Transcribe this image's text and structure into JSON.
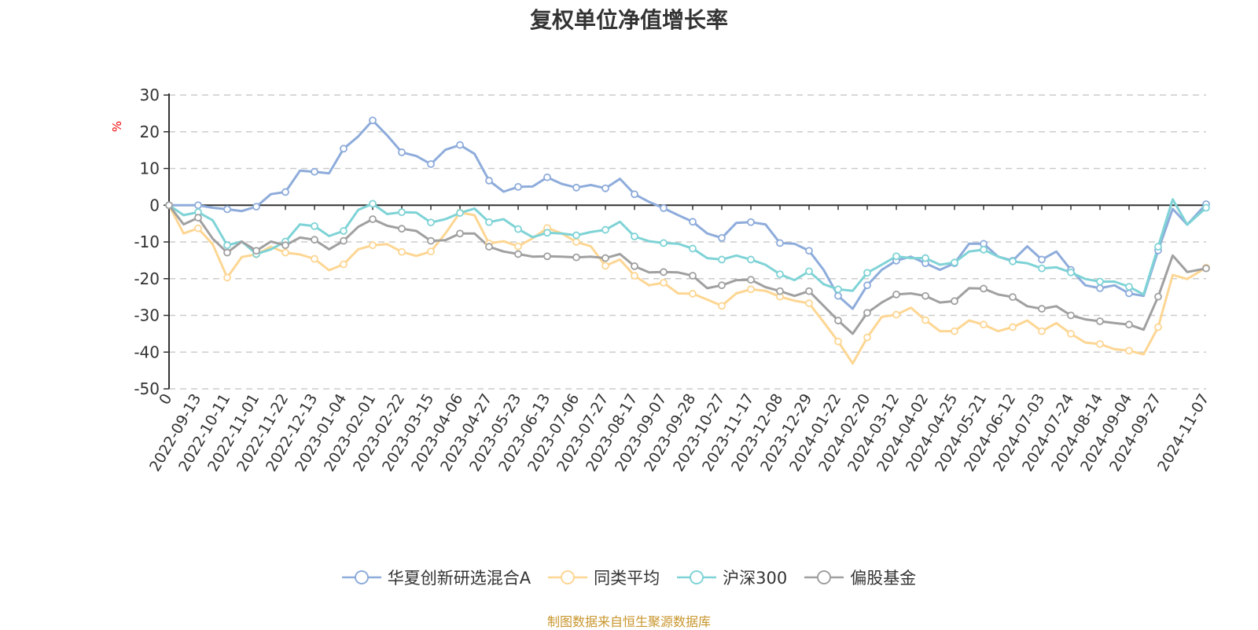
{
  "chart_data": {
    "type": "line",
    "title": "复权单位净值增长率",
    "ylabel": "%",
    "ylim": [
      -50,
      30
    ],
    "yticks": [
      30,
      20,
      10,
      0,
      -10,
      -20,
      -30,
      -40,
      -50
    ],
    "grid": true,
    "legend_position": "bottom",
    "x_labels": [
      "0",
      "2022-09-13",
      "2022-10-11",
      "2022-11-01",
      "2022-11-22",
      "2022-12-13",
      "2023-01-04",
      "2023-02-01",
      "2023-02-22",
      "2023-03-15",
      "2023-04-06",
      "2023-04-27",
      "2023-05-23",
      "2023-06-13",
      "2023-07-06",
      "2023-07-27",
      "2023-08-17",
      "2023-09-07",
      "2023-09-28",
      "2023-10-27",
      "2023-11-17",
      "2023-12-08",
      "2023-12-29",
      "2024-01-22",
      "2024-02-20",
      "2024-03-12",
      "2024-04-02",
      "2024-04-25",
      "2024-05-21",
      "2024-06-12",
      "2024-07-03",
      "2024-07-24",
      "2024-08-14",
      "2024-09-04",
      "2024-09-27",
      "2024-11-07"
    ],
    "series": [
      {
        "name": "华夏创新研选混合A",
        "color": "#8eacdb",
        "values": [
          0,
          0,
          0,
          -0.7,
          -1.1,
          -1.6,
          -0.4,
          3,
          3.6,
          9.4,
          9.1,
          8.7,
          15.4,
          18.7,
          23.1,
          19,
          14.4,
          13.4,
          11.2,
          15.1,
          16.4,
          14,
          6.7,
          3.7,
          5,
          5.1,
          7.6,
          5.8,
          4.8,
          5.5,
          4.6,
          7.2,
          3,
          0.9,
          -0.8,
          -2.7,
          -4.5,
          -7.7,
          -8.9,
          -4.8,
          -4.6,
          -5.2,
          -10.3,
          -10.5,
          -12.4,
          -17.6,
          -24.7,
          -28.2,
          -21.8,
          -17.6,
          -15.1,
          -14,
          -15.8,
          -17.6,
          -15.8,
          -10.5,
          -10.5,
          -14,
          -15.1,
          -11.2,
          -14.8,
          -12.6,
          -17.6,
          -21.8,
          -22.6,
          -21.8,
          -24,
          -24.7,
          -12.3,
          -1,
          -5.3,
          0.3
        ]
      },
      {
        "name": "同类平均",
        "color": "#fdd693",
        "values": [
          0,
          -7.7,
          -6.3,
          -10.6,
          -19.7,
          -14.1,
          -13.4,
          -11.3,
          -12.9,
          -13.4,
          -14.6,
          -17.7,
          -16.1,
          -12,
          -10.9,
          -10.6,
          -12.7,
          -13.8,
          -12.6,
          -7.7,
          -2,
          -2.7,
          -10.4,
          -9.8,
          -11.2,
          -9,
          -6.2,
          -7.7,
          -10,
          -11.2,
          -16.5,
          -14.8,
          -19.2,
          -21.8,
          -21.1,
          -24,
          -24.1,
          -25.7,
          -27.4,
          -24,
          -22.9,
          -23.3,
          -24.9,
          -26,
          -26.7,
          -31.8,
          -37.1,
          -43.1,
          -36,
          -30.4,
          -29.8,
          -27.9,
          -31.3,
          -34.3,
          -34.3,
          -31.4,
          -32.5,
          -34.3,
          -33.2,
          -31.4,
          -34.3,
          -32.1,
          -35,
          -37.4,
          -37.8,
          -39.2,
          -39.6,
          -40.6,
          -33.2,
          -19,
          -20.1,
          -17
        ]
      },
      {
        "name": "沪深300",
        "color": "#7fd3d6",
        "values": [
          0,
          -2.7,
          -1.9,
          -4.1,
          -10.9,
          -9.9,
          -13.3,
          -12,
          -9.9,
          -5.2,
          -5.7,
          -8.4,
          -7,
          -1.3,
          0.4,
          -2.4,
          -1.9,
          -2,
          -4.7,
          -3.8,
          -2.1,
          -0.9,
          -4.6,
          -3.8,
          -6.5,
          -8.7,
          -7.5,
          -7.7,
          -8.2,
          -7.3,
          -6.7,
          -4.5,
          -8.5,
          -9.8,
          -10.3,
          -10.5,
          -11.8,
          -14.4,
          -14.8,
          -13.7,
          -14.8,
          -16.2,
          -18.8,
          -20.4,
          -18,
          -21.5,
          -22.9,
          -23.3,
          -18.4,
          -16.2,
          -13.9,
          -14.4,
          -14.4,
          -16.2,
          -15.6,
          -12.6,
          -12.1,
          -14,
          -15.3,
          -15.8,
          -17.2,
          -16.9,
          -18.3,
          -20.1,
          -20.8,
          -20.8,
          -22.2,
          -24.3,
          -11.3,
          1.6,
          -5.3,
          -0.7
        ]
      },
      {
        "name": "偏股基金",
        "color": "#a0a0a0",
        "values": [
          0,
          -5.2,
          -3.4,
          -9.1,
          -12.9,
          -9.9,
          -12.4,
          -9.9,
          -10.9,
          -8.8,
          -9.4,
          -12,
          -9.7,
          -5.9,
          -3.8,
          -5.6,
          -6.4,
          -7,
          -9.7,
          -9.5,
          -7.7,
          -7.7,
          -11.3,
          -12.6,
          -13.3,
          -14,
          -13.9,
          -14,
          -14.2,
          -14,
          -14.4,
          -13.3,
          -16.6,
          -18.3,
          -18.2,
          -18.3,
          -19.2,
          -22.6,
          -21.8,
          -20.4,
          -20.3,
          -22.3,
          -23.4,
          -24.7,
          -23.4,
          -27.4,
          -31.4,
          -35,
          -29.3,
          -26.5,
          -24.3,
          -24,
          -24.7,
          -26.5,
          -26.1,
          -22.6,
          -22.7,
          -24.3,
          -25,
          -27.5,
          -28.2,
          -27.5,
          -30,
          -31.1,
          -31.6,
          -32.1,
          -32.5,
          -33.9,
          -24.9,
          -13.7,
          -18.2,
          -17.2
        ]
      }
    ]
  },
  "footer": {
    "source": "制图数据来自恒生聚源数据库"
  }
}
